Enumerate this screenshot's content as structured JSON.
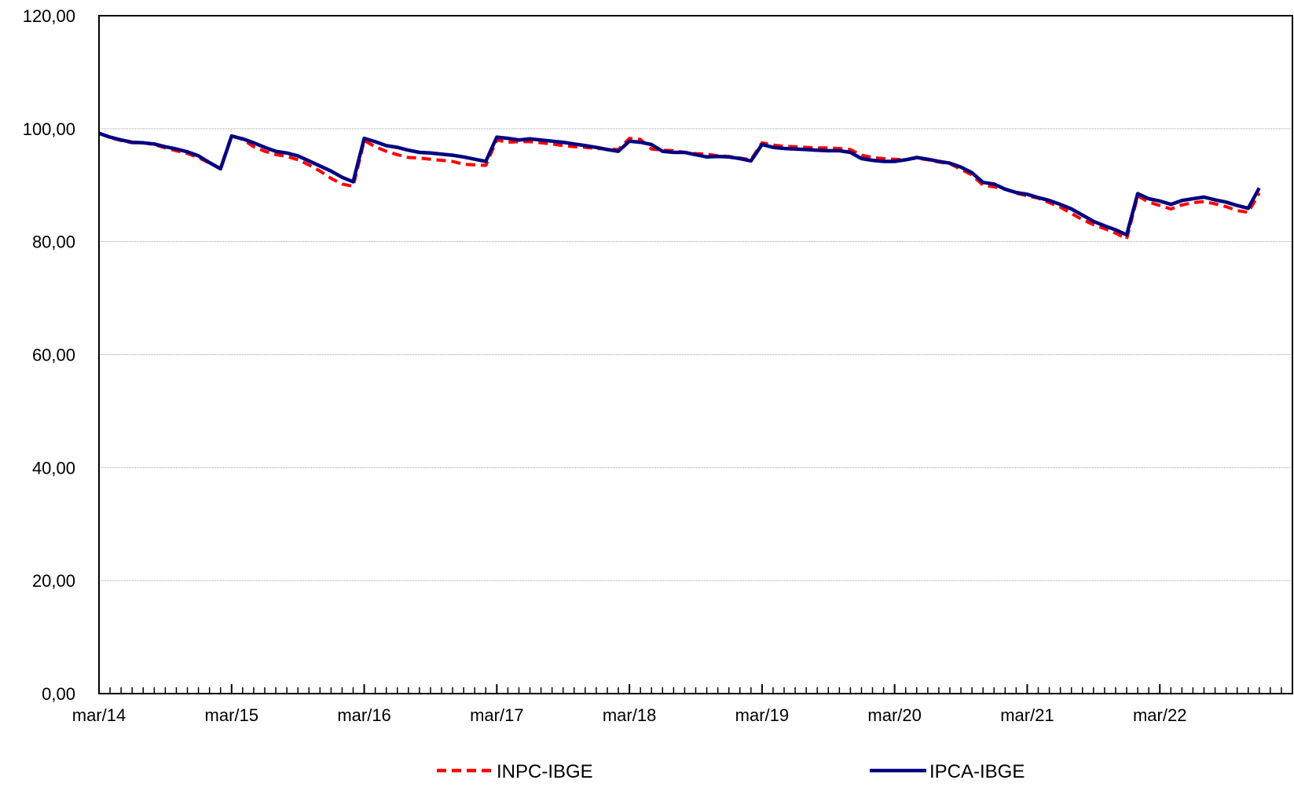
{
  "chart_data": {
    "type": "line",
    "title": "",
    "xlabel": "",
    "ylabel": "",
    "ylim": [
      0,
      120
    ],
    "yticks": [
      "0,00",
      "20,00",
      "40,00",
      "60,00",
      "80,00",
      "100,00",
      "120,00"
    ],
    "ytick_values": [
      0,
      20,
      40,
      60,
      80,
      100,
      120
    ],
    "xticks": [
      "mar/14",
      "mar/15",
      "mar/16",
      "mar/17",
      "mar/18",
      "mar/19",
      "mar/20",
      "mar/21",
      "mar/22"
    ],
    "xtick_month_index": [
      0,
      12,
      24,
      36,
      48,
      60,
      72,
      84,
      96
    ],
    "months_total": 108,
    "grid": "horizontal",
    "legend_position": "bottom",
    "series": [
      {
        "name": "INPC-IBGE",
        "color": "#ff0000",
        "style": "dashed",
        "values": [
          99.2,
          98.4,
          97.9,
          97.5,
          97.5,
          97.2,
          96.6,
          96.1,
          95.6,
          94.9,
          93.9,
          93.0,
          98.8,
          98.1,
          96.8,
          96.0,
          95.4,
          95.1,
          94.5,
          93.6,
          92.5,
          91.2,
          90.2,
          89.8,
          97.9,
          96.8,
          96.0,
          95.4,
          94.9,
          94.8,
          94.6,
          94.4,
          94.2,
          93.7,
          93.6,
          93.5,
          98.0,
          97.6,
          97.7,
          97.7,
          97.5,
          97.3,
          97.0,
          96.8,
          96.7,
          96.5,
          96.4,
          96.3,
          98.3,
          98.1,
          96.4,
          96.2,
          96.1,
          95.8,
          95.6,
          95.5,
          95.2,
          95.1,
          94.8,
          94.5,
          97.5,
          97.1,
          96.9,
          96.8,
          96.7,
          96.6,
          96.6,
          96.5,
          96.3,
          95.3,
          94.9,
          94.7,
          94.6,
          94.5,
          94.8,
          94.5,
          94.1,
          93.8,
          92.8,
          91.8,
          90.0,
          89.7,
          89.3,
          88.6,
          88.1,
          87.7,
          86.9,
          86.1,
          85.0,
          83.9,
          83.0,
          82.3,
          81.5,
          80.5,
          88.1,
          87.0,
          86.4,
          85.8,
          86.5,
          86.9,
          87.1,
          86.7,
          86.2,
          85.5,
          85.2,
          88.6
        ]
      },
      {
        "name": "IPCA-IBGE",
        "color": "#000080",
        "style": "solid",
        "values": [
          99.2,
          98.5,
          98.0,
          97.6,
          97.5,
          97.3,
          96.8,
          96.4,
          95.9,
          95.2,
          94.0,
          92.9,
          98.7,
          98.2,
          97.5,
          96.7,
          96.0,
          95.7,
          95.2,
          94.3,
          93.4,
          92.5,
          91.4,
          90.6,
          98.3,
          97.7,
          97.0,
          96.7,
          96.2,
          95.8,
          95.7,
          95.5,
          95.3,
          95.0,
          94.6,
          94.2,
          98.5,
          98.3,
          98.0,
          98.2,
          98.0,
          97.8,
          97.6,
          97.3,
          97.0,
          96.7,
          96.3,
          96.0,
          97.8,
          97.6,
          97.2,
          96.0,
          95.8,
          95.8,
          95.4,
          95.0,
          95.1,
          95.0,
          94.7,
          94.3,
          97.2,
          96.7,
          96.5,
          96.4,
          96.3,
          96.2,
          96.1,
          96.1,
          95.8,
          94.7,
          94.4,
          94.2,
          94.2,
          94.5,
          94.9,
          94.6,
          94.2,
          93.9,
          93.2,
          92.2,
          90.5,
          90.2,
          89.3,
          88.7,
          88.4,
          87.8,
          87.3,
          86.6,
          85.8,
          84.7,
          83.6,
          82.8,
          82.1,
          81.2,
          88.5,
          87.6,
          87.2,
          86.6,
          87.3,
          87.6,
          87.9,
          87.4,
          87.0,
          86.4,
          85.9,
          89.5
        ]
      }
    ]
  }
}
